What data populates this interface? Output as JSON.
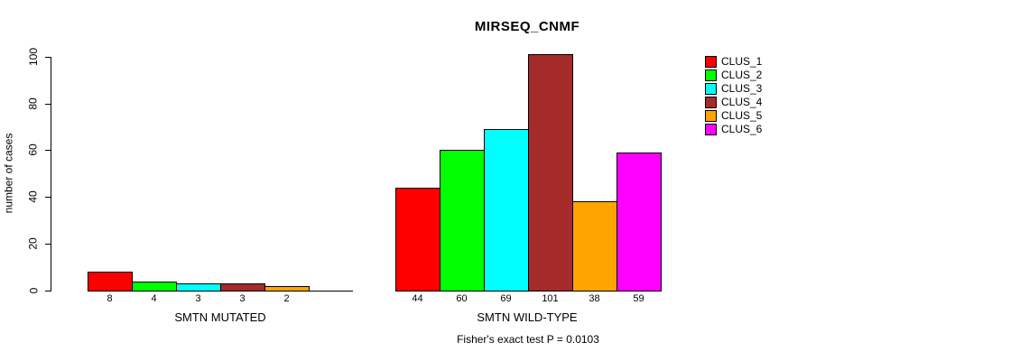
{
  "title": "MIRSEQ_CNMF",
  "footer": "Fisher's exact test P = 0.0103",
  "chart_data": {
    "type": "bar",
    "title": "MIRSEQ_CNMF",
    "xlabel": "",
    "ylabel": "number of cases",
    "ylim": [
      0,
      100
    ],
    "yticks": [
      0,
      20,
      40,
      60,
      80,
      100
    ],
    "grid": false,
    "legend_position": "top-right",
    "clusters": [
      "CLUS_1",
      "CLUS_2",
      "CLUS_3",
      "CLUS_4",
      "CLUS_5",
      "CLUS_6"
    ],
    "colors": [
      "#FF0000",
      "#00FF00",
      "#00FFFF",
      "#A52A2A",
      "#FFA500",
      "#FF00FF"
    ],
    "groups": [
      {
        "label": "SMTN MUTATED",
        "values": [
          8,
          4,
          3,
          3,
          2,
          0
        ],
        "bar_labels": [
          "8",
          "4",
          "3",
          "3",
          "2",
          ""
        ]
      },
      {
        "label": "SMTN WILD-TYPE",
        "values": [
          44,
          60,
          69,
          101,
          38,
          59
        ],
        "bar_labels": [
          "44",
          "60",
          "69",
          "101",
          "38",
          "59"
        ]
      }
    ],
    "annotation": "Fisher's exact test P = 0.0103"
  }
}
